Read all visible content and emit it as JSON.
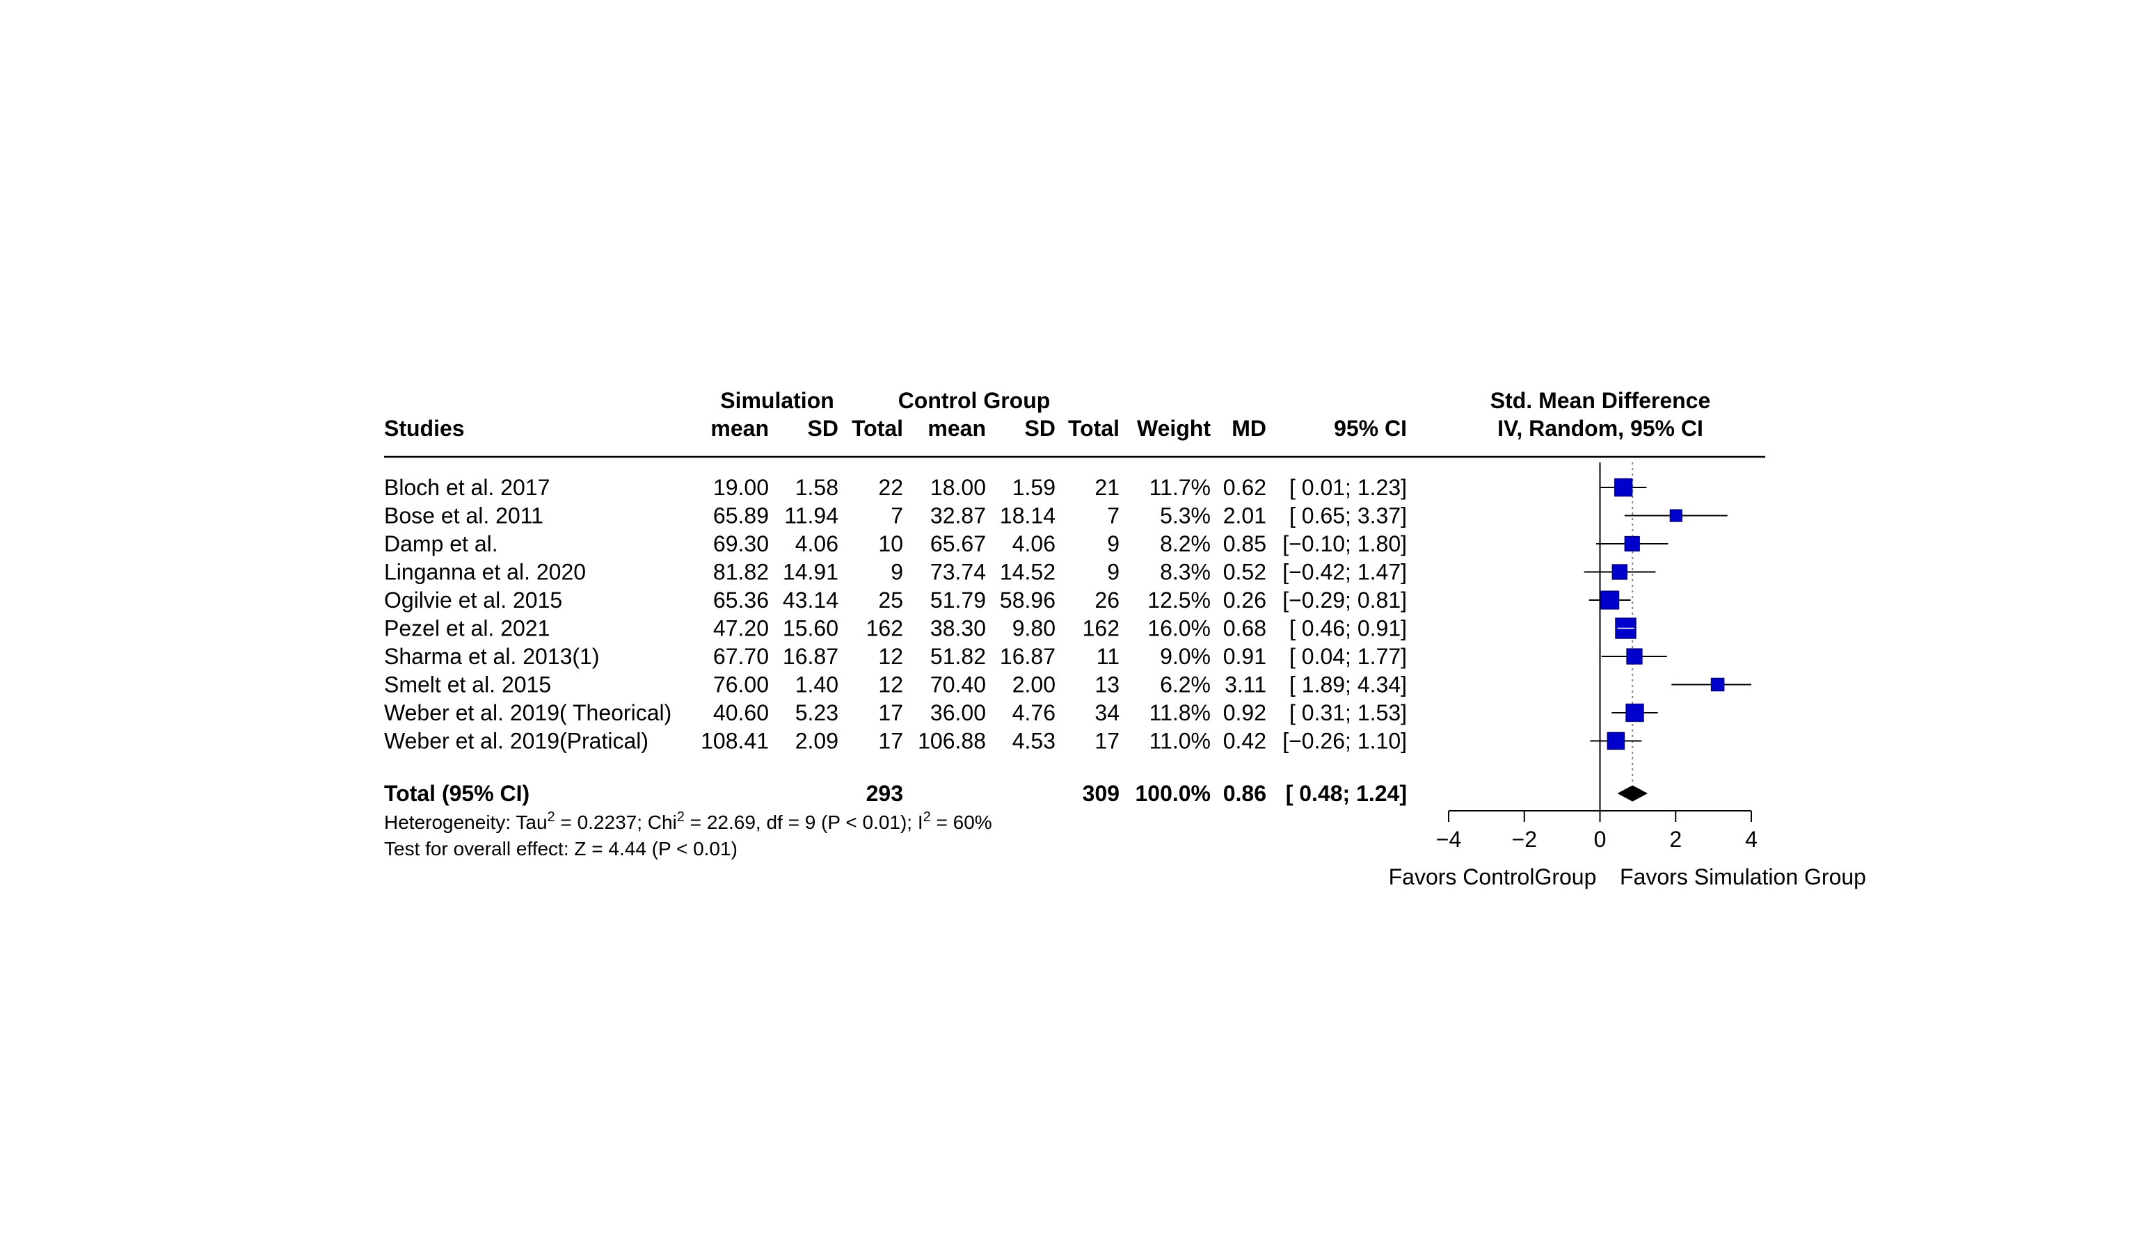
{
  "header": {
    "group1": "Simulation",
    "group2": "Control Group",
    "studies": "Studies",
    "mean1": "mean",
    "sd1": "SD",
    "total1": "Total",
    "mean2": "mean",
    "sd2": "SD",
    "total2": "Total",
    "weight": "Weight",
    "md": "MD",
    "ci": "95% CI",
    "plot_title": "Std. Mean Difference",
    "plot_subtitle": "IV, Random, 95% CI"
  },
  "rows": [
    {
      "study": "Bloch et al. 2017",
      "mean1": "19.00",
      "sd1": "1.58",
      "total1": "22",
      "mean2": "18.00",
      "sd2": "1.59",
      "total2": "21",
      "weight": "11.7%",
      "md": "0.62",
      "ci": "[ 0.01; 1.23]"
    },
    {
      "study": "Bose et al. 2011",
      "mean1": "65.89",
      "sd1": "11.94",
      "total1": "7",
      "mean2": "32.87",
      "sd2": "18.14",
      "total2": "7",
      "weight": "5.3%",
      "md": "2.01",
      "ci": "[ 0.65; 3.37]"
    },
    {
      "study": "Damp et al.",
      "mean1": "69.30",
      "sd1": "4.06",
      "total1": "10",
      "mean2": "65.67",
      "sd2": "4.06",
      "total2": "9",
      "weight": "8.2%",
      "md": "0.85",
      "ci": "[−0.10; 1.80]"
    },
    {
      "study": "Linganna et al. 2020",
      "mean1": "81.82",
      "sd1": "14.91",
      "total1": "9",
      "mean2": "73.74",
      "sd2": "14.52",
      "total2": "9",
      "weight": "8.3%",
      "md": "0.52",
      "ci": "[−0.42; 1.47]"
    },
    {
      "study": "Ogilvie et al. 2015",
      "mean1": "65.36",
      "sd1": "43.14",
      "total1": "25",
      "mean2": "51.79",
      "sd2": "58.96",
      "total2": "26",
      "weight": "12.5%",
      "md": "0.26",
      "ci": "[−0.29; 0.81]"
    },
    {
      "study": "Pezel et al. 2021",
      "mean1": "47.20",
      "sd1": "15.60",
      "total1": "162",
      "mean2": "38.30",
      "sd2": "9.80",
      "total2": "162",
      "weight": "16.0%",
      "md": "0.68",
      "ci": "[ 0.46; 0.91]"
    },
    {
      "study": "Sharma et al. 2013(1)",
      "mean1": "67.70",
      "sd1": "16.87",
      "total1": "12",
      "mean2": "51.82",
      "sd2": "16.87",
      "total2": "11",
      "weight": "9.0%",
      "md": "0.91",
      "ci": "[ 0.04; 1.77]"
    },
    {
      "study": "Smelt et al. 2015",
      "mean1": "76.00",
      "sd1": "1.40",
      "total1": "12",
      "mean2": "70.40",
      "sd2": "2.00",
      "total2": "13",
      "weight": "6.2%",
      "md": "3.11",
      "ci": "[ 1.89; 4.34]"
    },
    {
      "study": "Weber et al. 2019( Theorical)",
      "mean1": "40.60",
      "sd1": "5.23",
      "total1": "17",
      "mean2": "36.00",
      "sd2": "4.76",
      "total2": "34",
      "weight": "11.8%",
      "md": "0.92",
      "ci": "[ 0.31; 1.53]"
    },
    {
      "study": "Weber et al. 2019(Pratical)",
      "mean1": "108.41",
      "sd1": "2.09",
      "total1": "17",
      "mean2": "106.88",
      "sd2": "4.53",
      "total2": "17",
      "weight": "11.0%",
      "md": "0.42",
      "ci": "[−0.26; 1.10]"
    }
  ],
  "total": {
    "label": "Total (95% CI)",
    "total1": "293",
    "total2": "309",
    "weight": "100.0%",
    "md": "0.86",
    "ci": "[ 0.48; 1.24]"
  },
  "footer": {
    "heterogeneity_prefix": "Heterogeneity: Tau",
    "heterogeneity_sup1": "2",
    "heterogeneity_mid1": " = 0.2237; Chi",
    "heterogeneity_sup2": "2",
    "heterogeneity_mid2": " = 22.69, df = 9 (P < 0.01); I",
    "heterogeneity_sup3": "2",
    "heterogeneity_end": " = 60%",
    "overall": "Test for overall effect: Z = 4.44 (P < 0.01)"
  },
  "axis": {
    "left_label": "Favors ControlGroup",
    "right_label": "Favors Simulation Group"
  },
  "colors": {
    "box_fill": "#0000CD",
    "box_stroke": "#000080",
    "diamond": "#000000",
    "lines": "#000000",
    "ref_line": "#808080"
  },
  "chart_data": {
    "type": "forest",
    "xlim": [
      -4,
      4
    ],
    "x_ticks": [
      -4,
      -2,
      0,
      2,
      4
    ],
    "x_tick_labels": [
      "−4",
      "−2",
      "0",
      "2",
      "4"
    ],
    "null_value": 0,
    "studies": [
      {
        "name": "Bloch et al. 2017",
        "estimate": 0.62,
        "lower": 0.01,
        "upper": 1.23,
        "weight": 11.7
      },
      {
        "name": "Bose et al. 2011",
        "estimate": 2.01,
        "lower": 0.65,
        "upper": 3.37,
        "weight": 5.3
      },
      {
        "name": "Damp et al.",
        "estimate": 0.85,
        "lower": -0.1,
        "upper": 1.8,
        "weight": 8.2
      },
      {
        "name": "Linganna et al. 2020",
        "estimate": 0.52,
        "lower": -0.42,
        "upper": 1.47,
        "weight": 8.3
      },
      {
        "name": "Ogilvie et al. 2015",
        "estimate": 0.26,
        "lower": -0.29,
        "upper": 0.81,
        "weight": 12.5
      },
      {
        "name": "Pezel et al. 2021",
        "estimate": 0.68,
        "lower": 0.46,
        "upper": 0.91,
        "weight": 16.0
      },
      {
        "name": "Sharma et al. 2013(1)",
        "estimate": 0.91,
        "lower": 0.04,
        "upper": 1.77,
        "weight": 9.0
      },
      {
        "name": "Smelt et al. 2015",
        "estimate": 3.11,
        "lower": 1.89,
        "upper": 4.34,
        "weight": 6.2
      },
      {
        "name": "Weber et al. 2019( Theorical)",
        "estimate": 0.92,
        "lower": 0.31,
        "upper": 1.53,
        "weight": 11.8
      },
      {
        "name": "Weber et al. 2019(Pratical)",
        "estimate": 0.42,
        "lower": -0.26,
        "upper": 1.1,
        "weight": 11.0
      }
    ],
    "pooled": {
      "estimate": 0.86,
      "lower": 0.48,
      "upper": 1.24
    }
  }
}
